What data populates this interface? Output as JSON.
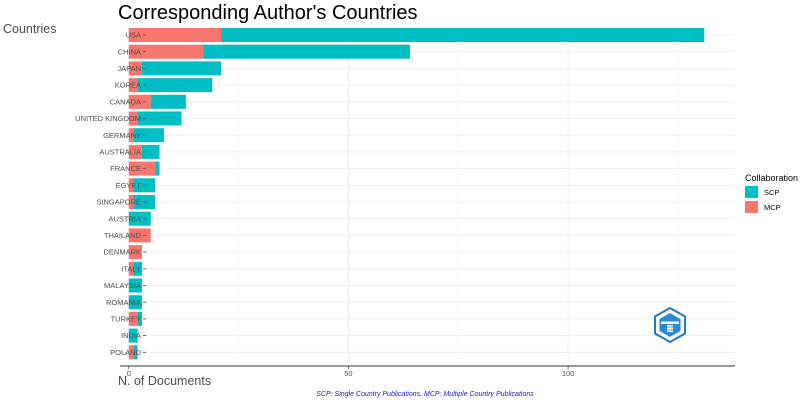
{
  "chart_data": {
    "type": "bar",
    "orientation": "horizontal",
    "stacked": true,
    "title": "Corresponding Author's Countries",
    "ylabel": "Countries",
    "xlabel": "N. of Documents",
    "caption": "SCP: Single Country Publications, MCP: Multiple Country Publications",
    "categories": [
      "USA",
      "CHINA",
      "JAPAN",
      "KOREA",
      "CANADA",
      "UNITED KINGDOM",
      "GERMANY",
      "AUSTRALIA",
      "FRANCE",
      "EGYPT",
      "SINGAPORE",
      "AUSTRIA",
      "THAILAND",
      "DENMARK",
      "ITALY",
      "MALAYSIA",
      "ROMANIA",
      "TURKEY",
      "INDIA",
      "POLAND"
    ],
    "series": [
      {
        "name": "MCP",
        "color": "#F8766D",
        "values": [
          21,
          17,
          3,
          2,
          5,
          2,
          1,
          3,
          6,
          1,
          1,
          0,
          5,
          3,
          1,
          0,
          0,
          2,
          0,
          1
        ]
      },
      {
        "name": "SCP",
        "color": "#00BFC4",
        "values": [
          110,
          47,
          18,
          17,
          8,
          10,
          7,
          4,
          1,
          5,
          5,
          5,
          0,
          0,
          2,
          3,
          3,
          1,
          2,
          1
        ]
      }
    ],
    "xlim": [
      -2,
      138
    ],
    "xticks": [
      0,
      50,
      100
    ],
    "legend": {
      "title": "Collaboration",
      "position": "right",
      "entries": [
        "SCP",
        "MCP"
      ]
    },
    "grid": true,
    "colors": {
      "SCP": "#00BFC4",
      "MCP": "#F8766D",
      "caption": "#1a1acc",
      "logo": "#1f78c8"
    }
  }
}
